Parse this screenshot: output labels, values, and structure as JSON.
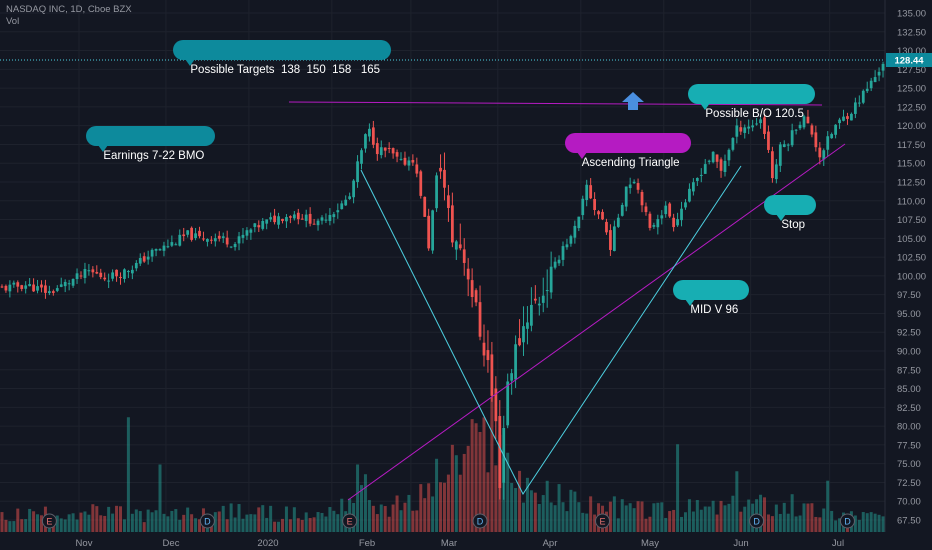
{
  "header": {
    "symbol_line": "NASDAQ INC, 1D, Cboe BZX",
    "vol_label": "Vol"
  },
  "annotations": {
    "targets": "Possible Targets  138  150  158   165",
    "earnings": "Earnings 7-22 BMO",
    "ascending_triangle": "Ascending Triangle",
    "possible_bo": "Possible B/O 120.5",
    "stop": "Stop",
    "mid_v": "MID V 96"
  },
  "last_price_label": "128.44",
  "colors": {
    "background": "#131722",
    "grid": "#1e222d",
    "up": "#26a69a",
    "down": "#ef5350",
    "teal_callout": "#0d8a9c",
    "magenta": "#b51bc2",
    "cyan_line": "#4dd0e1",
    "blue_arrow": "#4a8fe0"
  },
  "chart_data": {
    "type": "candlestick",
    "x_ticks": [
      "Nov",
      "Dec",
      "2020",
      "Feb",
      "Mar",
      "Apr",
      "May",
      "Jun",
      "Jul"
    ],
    "y_ticks": [
      67.5,
      70.0,
      72.5,
      75.0,
      77.5,
      80.0,
      82.5,
      85.0,
      87.5,
      90.0,
      92.5,
      95.0,
      97.5,
      100.0,
      102.5,
      105.0,
      107.5,
      110.0,
      112.5,
      115.0,
      117.5,
      120.0,
      122.5,
      125.0,
      127.5,
      130.0,
      132.5,
      135.0
    ],
    "ylim": [
      66.0,
      136.5
    ],
    "last_price": 128.44,
    "close_path": [
      [
        0,
        98.3
      ],
      [
        6,
        98.8
      ],
      [
        12,
        97.8
      ],
      [
        18,
        99.5
      ],
      [
        22,
        100.6
      ],
      [
        26,
        99.8
      ],
      [
        30,
        100.3
      ],
      [
        34,
        101.5
      ],
      [
        38,
        103.1
      ],
      [
        43,
        104.3
      ],
      [
        47,
        105.5
      ],
      [
        50,
        105.0
      ],
      [
        53,
        105.2
      ],
      [
        56,
        104.9
      ],
      [
        59,
        104.3
      ],
      [
        62,
        105.8
      ],
      [
        66,
        107.0
      ],
      [
        70,
        107.8
      ],
      [
        74,
        108.2
      ],
      [
        78,
        107.5
      ],
      [
        80,
        106.8
      ],
      [
        82,
        108.0
      ],
      [
        85,
        109.0
      ],
      [
        88,
        110.5
      ],
      [
        90,
        114.7
      ],
      [
        92,
        118.5
      ],
      [
        93,
        119.2
      ],
      [
        95,
        116.8
      ],
      [
        98,
        116.5
      ],
      [
        101,
        115.0
      ],
      [
        104,
        115.6
      ],
      [
        106,
        111.0
      ],
      [
        108,
        104.0
      ],
      [
        110,
        113.0
      ],
      [
        111,
        115.0
      ],
      [
        113,
        108.0
      ],
      [
        114,
        105.0
      ],
      [
        116,
        104.0
      ],
      [
        118,
        100.5
      ],
      [
        121,
        92.5
      ],
      [
        123,
        88.5
      ],
      [
        124,
        84.0
      ],
      [
        125,
        80.0
      ],
      [
        126,
        73.0
      ],
      [
        127,
        80.0
      ],
      [
        128,
        86.0
      ],
      [
        130,
        90.0
      ],
      [
        133,
        95.0
      ],
      [
        136,
        97.0
      ],
      [
        139,
        100.0
      ],
      [
        142,
        104.0
      ],
      [
        144,
        105.0
      ],
      [
        146,
        107.5
      ],
      [
        148,
        112.0
      ],
      [
        150,
        109.0
      ],
      [
        152,
        107.5
      ],
      [
        154,
        104.0
      ],
      [
        156,
        108.0
      ],
      [
        158,
        112.0
      ],
      [
        160,
        113.0
      ],
      [
        162,
        110.0
      ],
      [
        164,
        106.0
      ],
      [
        166,
        108.0
      ],
      [
        168,
        109.0
      ],
      [
        170,
        107.0
      ],
      [
        173,
        110.0
      ],
      [
        175,
        112.0
      ],
      [
        178,
        115.0
      ],
      [
        180,
        116.0
      ],
      [
        182,
        114.0
      ],
      [
        184,
        117.0
      ],
      [
        186,
        119.5
      ],
      [
        188,
        120.0
      ],
      [
        190,
        120.0
      ],
      [
        192,
        121.0
      ],
      [
        194,
        117.0
      ],
      [
        195,
        113.0
      ],
      [
        197,
        117.0
      ],
      [
        199,
        118.0
      ],
      [
        201,
        120.0
      ],
      [
        203,
        121.0
      ],
      [
        205,
        119.0
      ],
      [
        207,
        116.0
      ],
      [
        209,
        118.0
      ],
      [
        211,
        120.0
      ],
      [
        213,
        121.0
      ],
      [
        215,
        122.0
      ],
      [
        217,
        123.5
      ],
      [
        219,
        125.0
      ],
      [
        221,
        126.5
      ],
      [
        223,
        128.44
      ]
    ],
    "volume_path": [
      [
        0,
        0.12
      ],
      [
        20,
        0.15
      ],
      [
        40,
        0.12
      ],
      [
        60,
        0.15
      ],
      [
        80,
        0.12
      ],
      [
        88,
        0.25
      ],
      [
        92,
        0.3
      ],
      [
        96,
        0.18
      ],
      [
        104,
        0.2
      ],
      [
        110,
        0.4
      ],
      [
        116,
        0.52
      ],
      [
        120,
        0.62
      ],
      [
        124,
        0.72
      ],
      [
        126,
        0.55
      ],
      [
        130,
        0.42
      ],
      [
        136,
        0.28
      ],
      [
        150,
        0.2
      ],
      [
        165,
        0.16
      ],
      [
        180,
        0.18
      ],
      [
        190,
        0.22
      ],
      [
        200,
        0.18
      ],
      [
        210,
        0.14
      ],
      [
        223,
        0.12
      ]
    ],
    "volume_spikes": [
      [
        32,
        0.85
      ],
      [
        40,
        0.5
      ],
      [
        90,
        0.5
      ],
      [
        124,
        1.0
      ],
      [
        126,
        0.72
      ],
      [
        171,
        0.65
      ],
      [
        186,
        0.45
      ],
      [
        200,
        0.28
      ],
      [
        209,
        0.38
      ]
    ],
    "earnings_markers": [
      [
        12,
        "E"
      ],
      [
        88,
        "E"
      ],
      [
        152,
        "E"
      ]
    ],
    "dividend_markers": [
      [
        52,
        "D"
      ],
      [
        121,
        "D"
      ],
      [
        191,
        "D"
      ],
      [
        214,
        "D"
      ]
    ],
    "resistance_level": 122.6
  }
}
